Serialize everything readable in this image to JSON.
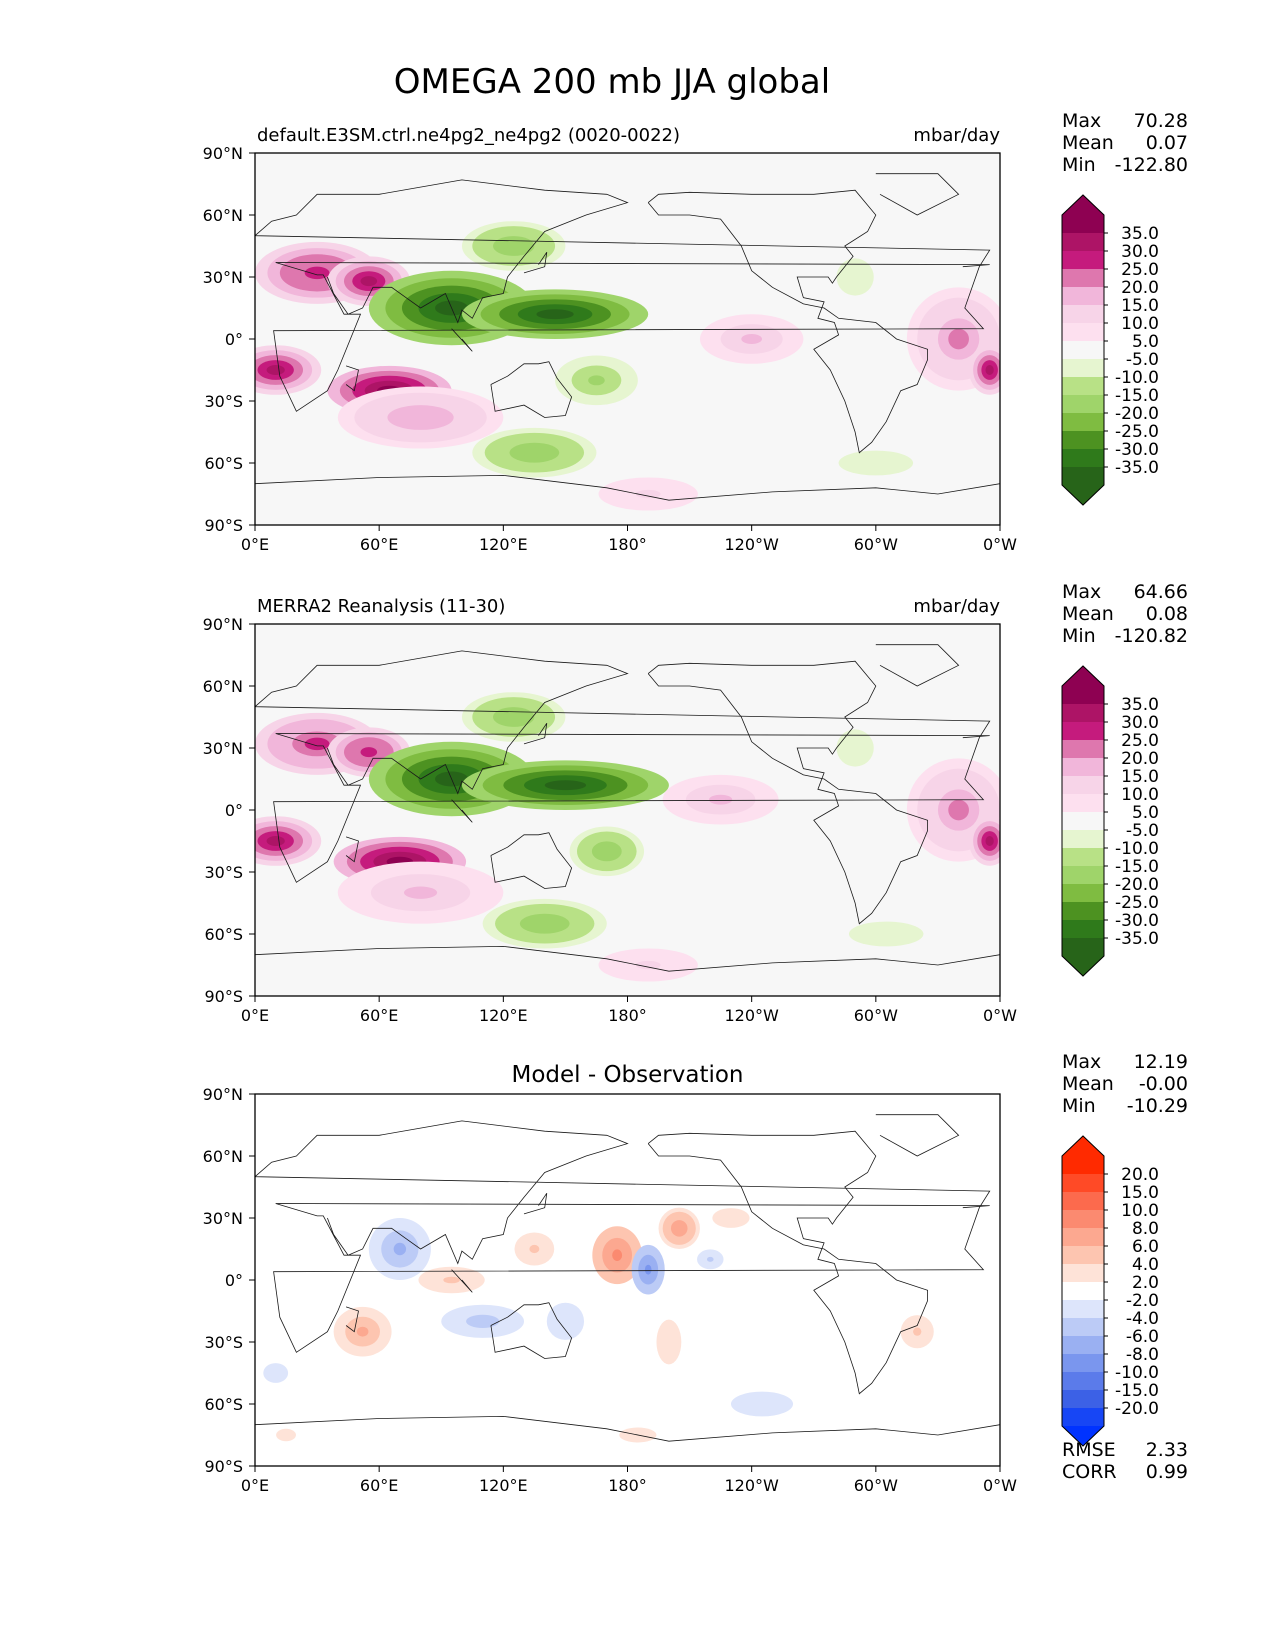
{
  "title": "OMEGA 200 mb JJA global",
  "chart_data": [
    {
      "type": "heatmap",
      "panel": "model",
      "left_label": "default.E3SM.ctrl.ne4pg2_ne4pg2 (0020-0022)",
      "units": "mbar/day",
      "stats": {
        "max_label": "Max",
        "max": "70.28",
        "mean_label": "Mean",
        "mean": "0.07",
        "min_label": "Min",
        "min": "-122.80"
      },
      "xticks": [
        "0°E",
        "60°E",
        "120°E",
        "180°",
        "120°W",
        "60°W",
        "0°W"
      ],
      "yticks": [
        "90°N",
        "60°N",
        "30°N",
        "0°",
        "30°S",
        "60°S",
        "90°S"
      ],
      "xlim": [
        0,
        360
      ],
      "ylim": [
        -90,
        90
      ],
      "colorbar": {
        "labels": [
          "35.0",
          "30.0",
          "25.0",
          "20.0",
          "15.0",
          "10.0",
          "5.0",
          "-5.0",
          "-10.0",
          "-15.0",
          "-20.0",
          "-25.0",
          "-30.0",
          "-35.0"
        ],
        "colors": [
          "#8e0152",
          "#ad1466",
          "#c51b7d",
          "#de77ae",
          "#f1b6da",
          "#f7d4e8",
          "#fde0ef",
          "#f7f7f7",
          "#e6f5d0",
          "#b8e186",
          "#9fd46a",
          "#7fbc41",
          "#4d9221",
          "#2f7a1b",
          "#276419"
        ],
        "over": "#8e0152",
        "under": "#276419"
      },
      "features": [
        {
          "lon": 30,
          "lat": 32,
          "value": 28,
          "rx": 30,
          "ry": 15
        },
        {
          "lon": 55,
          "lat": 28,
          "value": 30,
          "rx": 20,
          "ry": 12
        },
        {
          "lon": 65,
          "lat": -25,
          "value": 40,
          "rx": 30,
          "ry": 12
        },
        {
          "lon": 10,
          "lat": -15,
          "value": 30,
          "rx": 22,
          "ry": 12
        },
        {
          "lon": 80,
          "lat": -38,
          "value": 18,
          "rx": 40,
          "ry": 15
        },
        {
          "lon": 95,
          "lat": 15,
          "value": -40,
          "rx": 40,
          "ry": 18
        },
        {
          "lon": 145,
          "lat": 12,
          "value": -40,
          "rx": 45,
          "ry": 12
        },
        {
          "lon": 125,
          "lat": 45,
          "value": -18,
          "rx": 25,
          "ry": 12
        },
        {
          "lon": 165,
          "lat": -20,
          "value": -15,
          "rx": 20,
          "ry": 12
        },
        {
          "lon": 135,
          "lat": -55,
          "value": -18,
          "rx": 30,
          "ry": 12
        },
        {
          "lon": 240,
          "lat": 0,
          "value": 15,
          "rx": 25,
          "ry": 12
        },
        {
          "lon": 340,
          "lat": 0,
          "value": 20,
          "rx": 25,
          "ry": 25
        },
        {
          "lon": 355,
          "lat": -15,
          "value": 30,
          "rx": 10,
          "ry": 12
        },
        {
          "lon": 290,
          "lat": 30,
          "value": -8,
          "rx": 15,
          "ry": 15
        },
        {
          "lon": 300,
          "lat": -60,
          "value": -8,
          "rx": 30,
          "ry": 10
        },
        {
          "lon": 190,
          "lat": -75,
          "value": 10,
          "rx": 30,
          "ry": 10
        }
      ]
    },
    {
      "type": "heatmap",
      "panel": "reference",
      "left_label": "MERRA2 Reanalysis (11-30)",
      "units": "mbar/day",
      "stats": {
        "max_label": "Max",
        "max": "64.66",
        "mean_label": "Mean",
        "mean": "0.08",
        "min_label": "Min",
        "min": "-120.82"
      },
      "xticks": [
        "0°E",
        "60°E",
        "120°E",
        "180°",
        "120°W",
        "60°W",
        "0°W"
      ],
      "yticks": [
        "90°N",
        "60°N",
        "30°N",
        "0°",
        "30°S",
        "60°S",
        "90°S"
      ],
      "xlim": [
        0,
        360
      ],
      "ylim": [
        -90,
        90
      ],
      "colorbar": {
        "labels": [
          "35.0",
          "30.0",
          "25.0",
          "20.0",
          "15.0",
          "10.0",
          "5.0",
          "-5.0",
          "-10.0",
          "-15.0",
          "-20.0",
          "-25.0",
          "-30.0",
          "-35.0"
        ],
        "colors": [
          "#8e0152",
          "#ad1466",
          "#c51b7d",
          "#de77ae",
          "#f1b6da",
          "#f7d4e8",
          "#fde0ef",
          "#f7f7f7",
          "#e6f5d0",
          "#b8e186",
          "#9fd46a",
          "#7fbc41",
          "#4d9221",
          "#2f7a1b",
          "#276419"
        ],
        "over": "#8e0152",
        "under": "#276419"
      },
      "features": [
        {
          "lon": 30,
          "lat": 32,
          "value": 26,
          "rx": 30,
          "ry": 15
        },
        {
          "lon": 55,
          "lat": 28,
          "value": 28,
          "rx": 20,
          "ry": 12
        },
        {
          "lon": 70,
          "lat": -25,
          "value": 40,
          "rx": 32,
          "ry": 12
        },
        {
          "lon": 10,
          "lat": -15,
          "value": 30,
          "rx": 22,
          "ry": 12
        },
        {
          "lon": 80,
          "lat": -40,
          "value": 15,
          "rx": 40,
          "ry": 15
        },
        {
          "lon": 95,
          "lat": 15,
          "value": -40,
          "rx": 40,
          "ry": 18
        },
        {
          "lon": 150,
          "lat": 12,
          "value": -40,
          "rx": 50,
          "ry": 12
        },
        {
          "lon": 125,
          "lat": 45,
          "value": -18,
          "rx": 25,
          "ry": 12
        },
        {
          "lon": 170,
          "lat": -20,
          "value": -18,
          "rx": 18,
          "ry": 12
        },
        {
          "lon": 140,
          "lat": -55,
          "value": -18,
          "rx": 30,
          "ry": 12
        },
        {
          "lon": 225,
          "lat": 5,
          "value": 15,
          "rx": 28,
          "ry": 12
        },
        {
          "lon": 340,
          "lat": 0,
          "value": 20,
          "rx": 25,
          "ry": 25
        },
        {
          "lon": 355,
          "lat": -15,
          "value": 30,
          "rx": 10,
          "ry": 12
        },
        {
          "lon": 290,
          "lat": 30,
          "value": -8,
          "rx": 15,
          "ry": 15
        },
        {
          "lon": 305,
          "lat": -60,
          "value": -8,
          "rx": 30,
          "ry": 10
        },
        {
          "lon": 190,
          "lat": -75,
          "value": 10,
          "rx": 30,
          "ry": 10
        }
      ]
    },
    {
      "type": "heatmap",
      "panel": "difference",
      "center_title": "Model - Observation",
      "stats": {
        "max_label": "Max",
        "max": "12.19",
        "mean_label": "Mean",
        "mean": "-0.00",
        "min_label": "Min",
        "min": "-10.29"
      },
      "extra_stats": {
        "rmse_label": "RMSE",
        "rmse": "2.33",
        "corr_label": "CORR",
        "corr": "0.99"
      },
      "xticks": [
        "0°E",
        "60°E",
        "120°E",
        "180°",
        "120°W",
        "60°W",
        "0°W"
      ],
      "yticks": [
        "90°N",
        "60°N",
        "30°N",
        "0°",
        "30°S",
        "60°S",
        "90°S"
      ],
      "xlim": [
        0,
        360
      ],
      "ylim": [
        -90,
        90
      ],
      "colorbar": {
        "labels": [
          "20.0",
          "15.0",
          "10.0",
          "8.0",
          "6.0",
          "4.0",
          "2.0",
          "-2.0",
          "-4.0",
          "-6.0",
          "-8.0",
          "-10.0",
          "-15.0",
          "-20.0"
        ],
        "colors": [
          "#ff2a00",
          "#ff4a26",
          "#fc6a4d",
          "#fb8a70",
          "#fca890",
          "#fdc5b0",
          "#fee3d8",
          "#ffffff",
          "#dde5fb",
          "#bccbf6",
          "#9ab0f2",
          "#7a96ee",
          "#5b7bea",
          "#3c61e6",
          "#1746f5"
        ],
        "over": "#ff2a00",
        "under": "#0033ff"
      },
      "features": [
        {
          "lon": 175,
          "lat": 12,
          "value": 9,
          "rx": 12,
          "ry": 14
        },
        {
          "lon": 205,
          "lat": 25,
          "value": 7,
          "rx": 10,
          "ry": 10
        },
        {
          "lon": 135,
          "lat": 15,
          "value": 4,
          "rx": 12,
          "ry": 10
        },
        {
          "lon": 52,
          "lat": -25,
          "value": 6,
          "rx": 14,
          "ry": 12
        },
        {
          "lon": 95,
          "lat": 0,
          "value": 4,
          "rx": 20,
          "ry": 8
        },
        {
          "lon": 200,
          "lat": -30,
          "value": 3,
          "rx": 10,
          "ry": 18
        },
        {
          "lon": 320,
          "lat": -25,
          "value": 4,
          "rx": 10,
          "ry": 10
        },
        {
          "lon": 230,
          "lat": 30,
          "value": 3,
          "rx": 15,
          "ry": 8
        },
        {
          "lon": 185,
          "lat": -75,
          "value": 3,
          "rx": 15,
          "ry": 6
        },
        {
          "lon": 15,
          "lat": -75,
          "value": 3,
          "rx": 8,
          "ry": 5
        },
        {
          "lon": 190,
          "lat": 5,
          "value": -9,
          "rx": 8,
          "ry": 12
        },
        {
          "lon": 70,
          "lat": 15,
          "value": -6,
          "rx": 15,
          "ry": 15
        },
        {
          "lon": 110,
          "lat": -20,
          "value": -5,
          "rx": 20,
          "ry": 8
        },
        {
          "lon": 150,
          "lat": -20,
          "value": -3,
          "rx": 15,
          "ry": 15
        },
        {
          "lon": 245,
          "lat": -60,
          "value": -3,
          "rx": 25,
          "ry": 10
        },
        {
          "lon": 220,
          "lat": 10,
          "value": -4,
          "rx": 8,
          "ry": 6
        },
        {
          "lon": 10,
          "lat": -45,
          "value": -3,
          "rx": 10,
          "ry": 8
        }
      ]
    }
  ]
}
